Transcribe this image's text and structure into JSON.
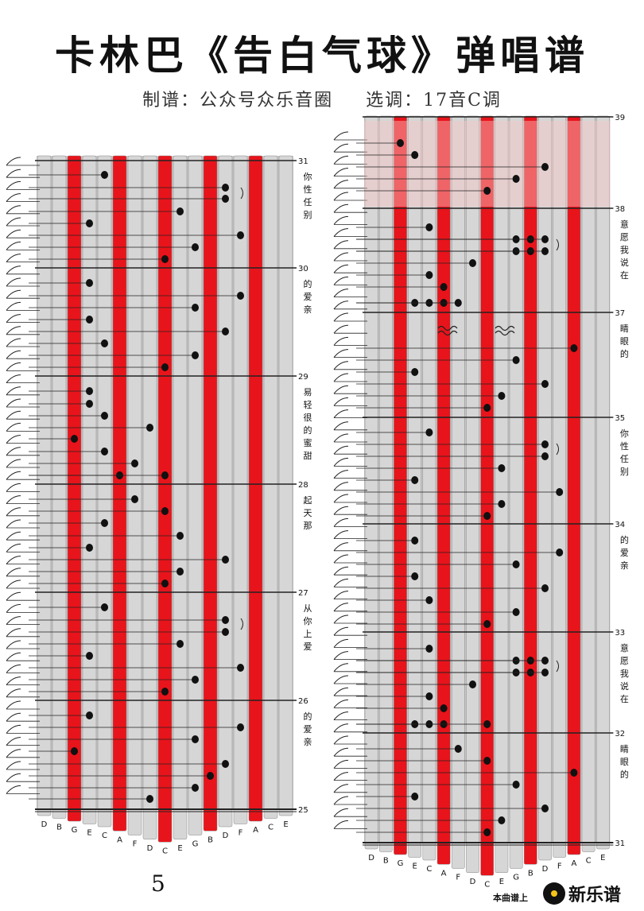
{
  "title": "卡林巴《告白气球》弹唱谱",
  "subtitle": {
    "arranger": "制谱：公众号众乐音圈",
    "key": "选调：17音C调"
  },
  "page_number": "5",
  "footer": {
    "note": "本曲谱上",
    "brand": "新乐谱"
  },
  "colors": {
    "tine_red": "#e8141b",
    "tine_gray": "#c8c8c8",
    "highlight": "#f9c6c6"
  },
  "key_labels": [
    "D",
    "B",
    "G",
    "E",
    "C",
    "A",
    "F",
    "D",
    "C",
    "E",
    "G",
    "B",
    "D",
    "F",
    "A",
    "C",
    "E"
  ],
  "left_staff": {
    "measures": [
      {
        "num": "31",
        "lyrics": [
          "你",
          "性",
          "任",
          "别"
        ]
      },
      {
        "num": "30",
        "lyrics": [
          "的",
          "爱",
          "亲"
        ]
      },
      {
        "num": "29",
        "lyrics": [
          "易",
          "轻",
          "很",
          "的",
          "蜜",
          "甜"
        ]
      },
      {
        "num": "28",
        "lyrics": [
          "起",
          "天",
          "那"
        ]
      },
      {
        "num": "27",
        "lyrics": [
          "从",
          "你",
          "上",
          "爱"
        ]
      },
      {
        "num": "26",
        "lyrics": [
          "的",
          "爱",
          "亲"
        ]
      }
    ],
    "end_num": "25"
  },
  "right_staff": {
    "measures": [
      {
        "num": "39",
        "lyrics": []
      },
      {
        "num": "38",
        "lyrics": [
          "意",
          "愿",
          "我",
          "说",
          "在"
        ]
      },
      {
        "num": "37",
        "lyrics": [
          "睛",
          "眼",
          "的"
        ]
      },
      {
        "num": "35",
        "lyrics": [
          "你",
          "性",
          "任",
          "别"
        ]
      },
      {
        "num": "34",
        "lyrics": [
          "的",
          "爱",
          "亲"
        ]
      },
      {
        "num": "33",
        "lyrics": [
          "意",
          "愿",
          "我",
          "说",
          "在"
        ]
      },
      {
        "num": "32",
        "lyrics": [
          "睛",
          "眼",
          "的"
        ]
      }
    ],
    "end_num": "31"
  }
}
